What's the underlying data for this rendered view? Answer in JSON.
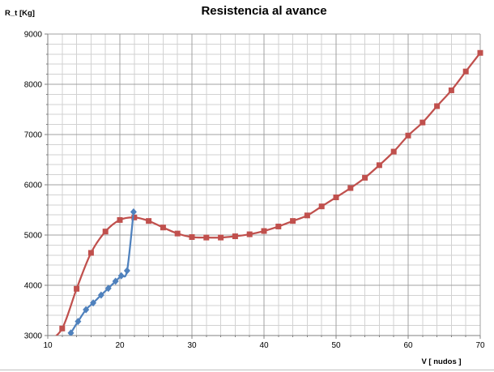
{
  "window": {
    "background": "#ffffff",
    "bottom_border_color": "#bfbfbf"
  },
  "chart_data": {
    "type": "line",
    "title": "Resistencia al avance",
    "xlabel": "V [ nudos ]",
    "ylabel": "R_t [Kg]",
    "xlim": [
      10,
      70
    ],
    "ylim": [
      3000,
      9000
    ],
    "x_ticks": [
      10,
      20,
      30,
      40,
      50,
      60,
      70
    ],
    "y_ticks": [
      3000,
      4000,
      5000,
      6000,
      7000,
      8000,
      9000
    ],
    "x_minor_step": 2,
    "y_minor_step": 200,
    "grid": "major-and-minor",
    "legend_position": "none",
    "colors": {
      "major_grid": "#a0a0a0",
      "minor_grid": "#d2d2d2",
      "axis": "#808080",
      "tick_text": "#000000"
    },
    "series": [
      {
        "name": "red-resistance-series",
        "color": "#c0504d",
        "marker": "square",
        "smooth": true,
        "points": [
          [
            10,
            2885
          ],
          [
            12,
            3140
          ],
          [
            14,
            3930
          ],
          [
            16,
            4645
          ],
          [
            18,
            5070
          ],
          [
            20,
            5300
          ],
          [
            22,
            5350
          ],
          [
            24,
            5280
          ],
          [
            26,
            5150
          ],
          [
            28,
            5030
          ],
          [
            30,
            4960
          ],
          [
            32,
            4950
          ],
          [
            34,
            4950
          ],
          [
            36,
            4975
          ],
          [
            38,
            5015
          ],
          [
            40,
            5080
          ],
          [
            42,
            5170
          ],
          [
            44,
            5280
          ],
          [
            46,
            5390
          ],
          [
            48,
            5570
          ],
          [
            50,
            5750
          ],
          [
            52,
            5935
          ],
          [
            54,
            6140
          ],
          [
            56,
            6390
          ],
          [
            58,
            6660
          ],
          [
            60,
            6980
          ],
          [
            62,
            7240
          ],
          [
            64,
            7565
          ],
          [
            66,
            7880
          ],
          [
            68,
            8255
          ],
          [
            70,
            8625
          ]
        ]
      },
      {
        "name": "blue-towing-series",
        "color": "#4f81bd",
        "marker": "diamond",
        "smooth": true,
        "points": [
          [
            13.2,
            3050
          ],
          [
            14.2,
            3280
          ],
          [
            15.3,
            3515
          ],
          [
            16.3,
            3650
          ],
          [
            17.4,
            3805
          ],
          [
            18.4,
            3940
          ],
          [
            19.4,
            4080
          ],
          [
            20.2,
            4190
          ],
          [
            21.0,
            4290
          ],
          [
            21.9,
            5460
          ]
        ]
      }
    ]
  }
}
